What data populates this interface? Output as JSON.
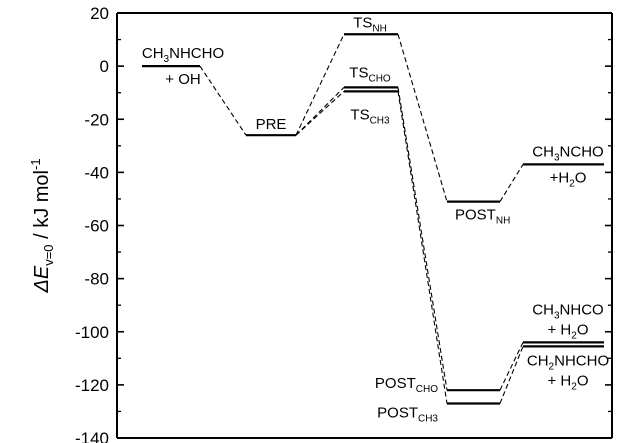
{
  "chart_data": {
    "type": "line",
    "chart_kind": "energy-level diagram",
    "ylabel": {
      "prefix": "ΔE",
      "sub": "v=0",
      "unit": " / kJ mol",
      "sup": "-1"
    },
    "ylim": [
      -140,
      20
    ],
    "yticks": [
      -140,
      -120,
      -100,
      -80,
      -60,
      -40,
      -20,
      0,
      20
    ],
    "minor_ticks": true,
    "grid": false,
    "legend": "none",
    "levels": [
      {
        "id": "reactants",
        "stage": 0,
        "energy": 0,
        "label": [
          {
            "t": "CH"
          },
          {
            "t": "3",
            "sub": true
          },
          {
            "t": "NHCHO"
          }
        ],
        "label2": [
          {
            "t": "+ OH"
          }
        ]
      },
      {
        "id": "pre",
        "stage": 1,
        "energy": -26,
        "label": [
          {
            "t": "PRE"
          }
        ]
      },
      {
        "id": "ts_nh",
        "stage": 2,
        "energy": 12,
        "label": [
          {
            "t": "TS"
          },
          {
            "t": "NH",
            "sub": true
          }
        ]
      },
      {
        "id": "ts_cho",
        "stage": 2,
        "energy": -8,
        "label": [
          {
            "t": "TS"
          },
          {
            "t": "CHO",
            "sub": true
          }
        ]
      },
      {
        "id": "ts_ch3",
        "stage": 2,
        "energy": -9.5,
        "label": [
          {
            "t": "TS"
          },
          {
            "t": "CH3",
            "sub": true
          }
        ]
      },
      {
        "id": "post_nh",
        "stage": 3,
        "energy": -51,
        "label": [
          {
            "t": "POST"
          },
          {
            "t": "NH",
            "sub": true
          }
        ]
      },
      {
        "id": "post_cho",
        "stage": 3,
        "energy": -122,
        "label": [
          {
            "t": "POST"
          },
          {
            "t": "CHO",
            "sub": true
          }
        ]
      },
      {
        "id": "post_ch3",
        "stage": 3,
        "energy": -127,
        "label": [
          {
            "t": "POST"
          },
          {
            "t": "CH3",
            "sub": true
          }
        ]
      },
      {
        "id": "prod_nh",
        "stage": 4,
        "energy": -37,
        "label": [
          {
            "t": "CH"
          },
          {
            "t": "3",
            "sub": true
          },
          {
            "t": "NCHO"
          }
        ],
        "label2": [
          {
            "t": "+H"
          },
          {
            "t": "2",
            "sub": true
          },
          {
            "t": "O"
          }
        ]
      },
      {
        "id": "prod_cho",
        "stage": 4,
        "energy": -104,
        "label": [
          {
            "t": "CH"
          },
          {
            "t": "3",
            "sub": true
          },
          {
            "t": "NHCO"
          }
        ],
        "label2": [
          {
            "t": "+ H"
          },
          {
            "t": "2",
            "sub": true
          },
          {
            "t": "O"
          }
        ]
      },
      {
        "id": "prod_ch3",
        "stage": 4,
        "energy": -105.5,
        "label": [
          {
            "t": "CH"
          },
          {
            "t": "2",
            "sub": true
          },
          {
            "t": "NHCHO"
          }
        ],
        "label2": [
          {
            "t": "+ H"
          },
          {
            "t": "2",
            "sub": true
          },
          {
            "t": "O"
          }
        ]
      }
    ],
    "connections": [
      [
        "reactants",
        "pre"
      ],
      [
        "pre",
        "ts_nh"
      ],
      [
        "pre",
        "ts_cho"
      ],
      [
        "pre",
        "ts_ch3"
      ],
      [
        "ts_nh",
        "post_nh"
      ],
      [
        "ts_cho",
        "post_cho"
      ],
      [
        "ts_ch3",
        "post_ch3"
      ],
      [
        "post_nh",
        "prod_nh"
      ],
      [
        "post_cho",
        "prod_cho"
      ],
      [
        "post_ch3",
        "prod_ch3"
      ]
    ]
  }
}
